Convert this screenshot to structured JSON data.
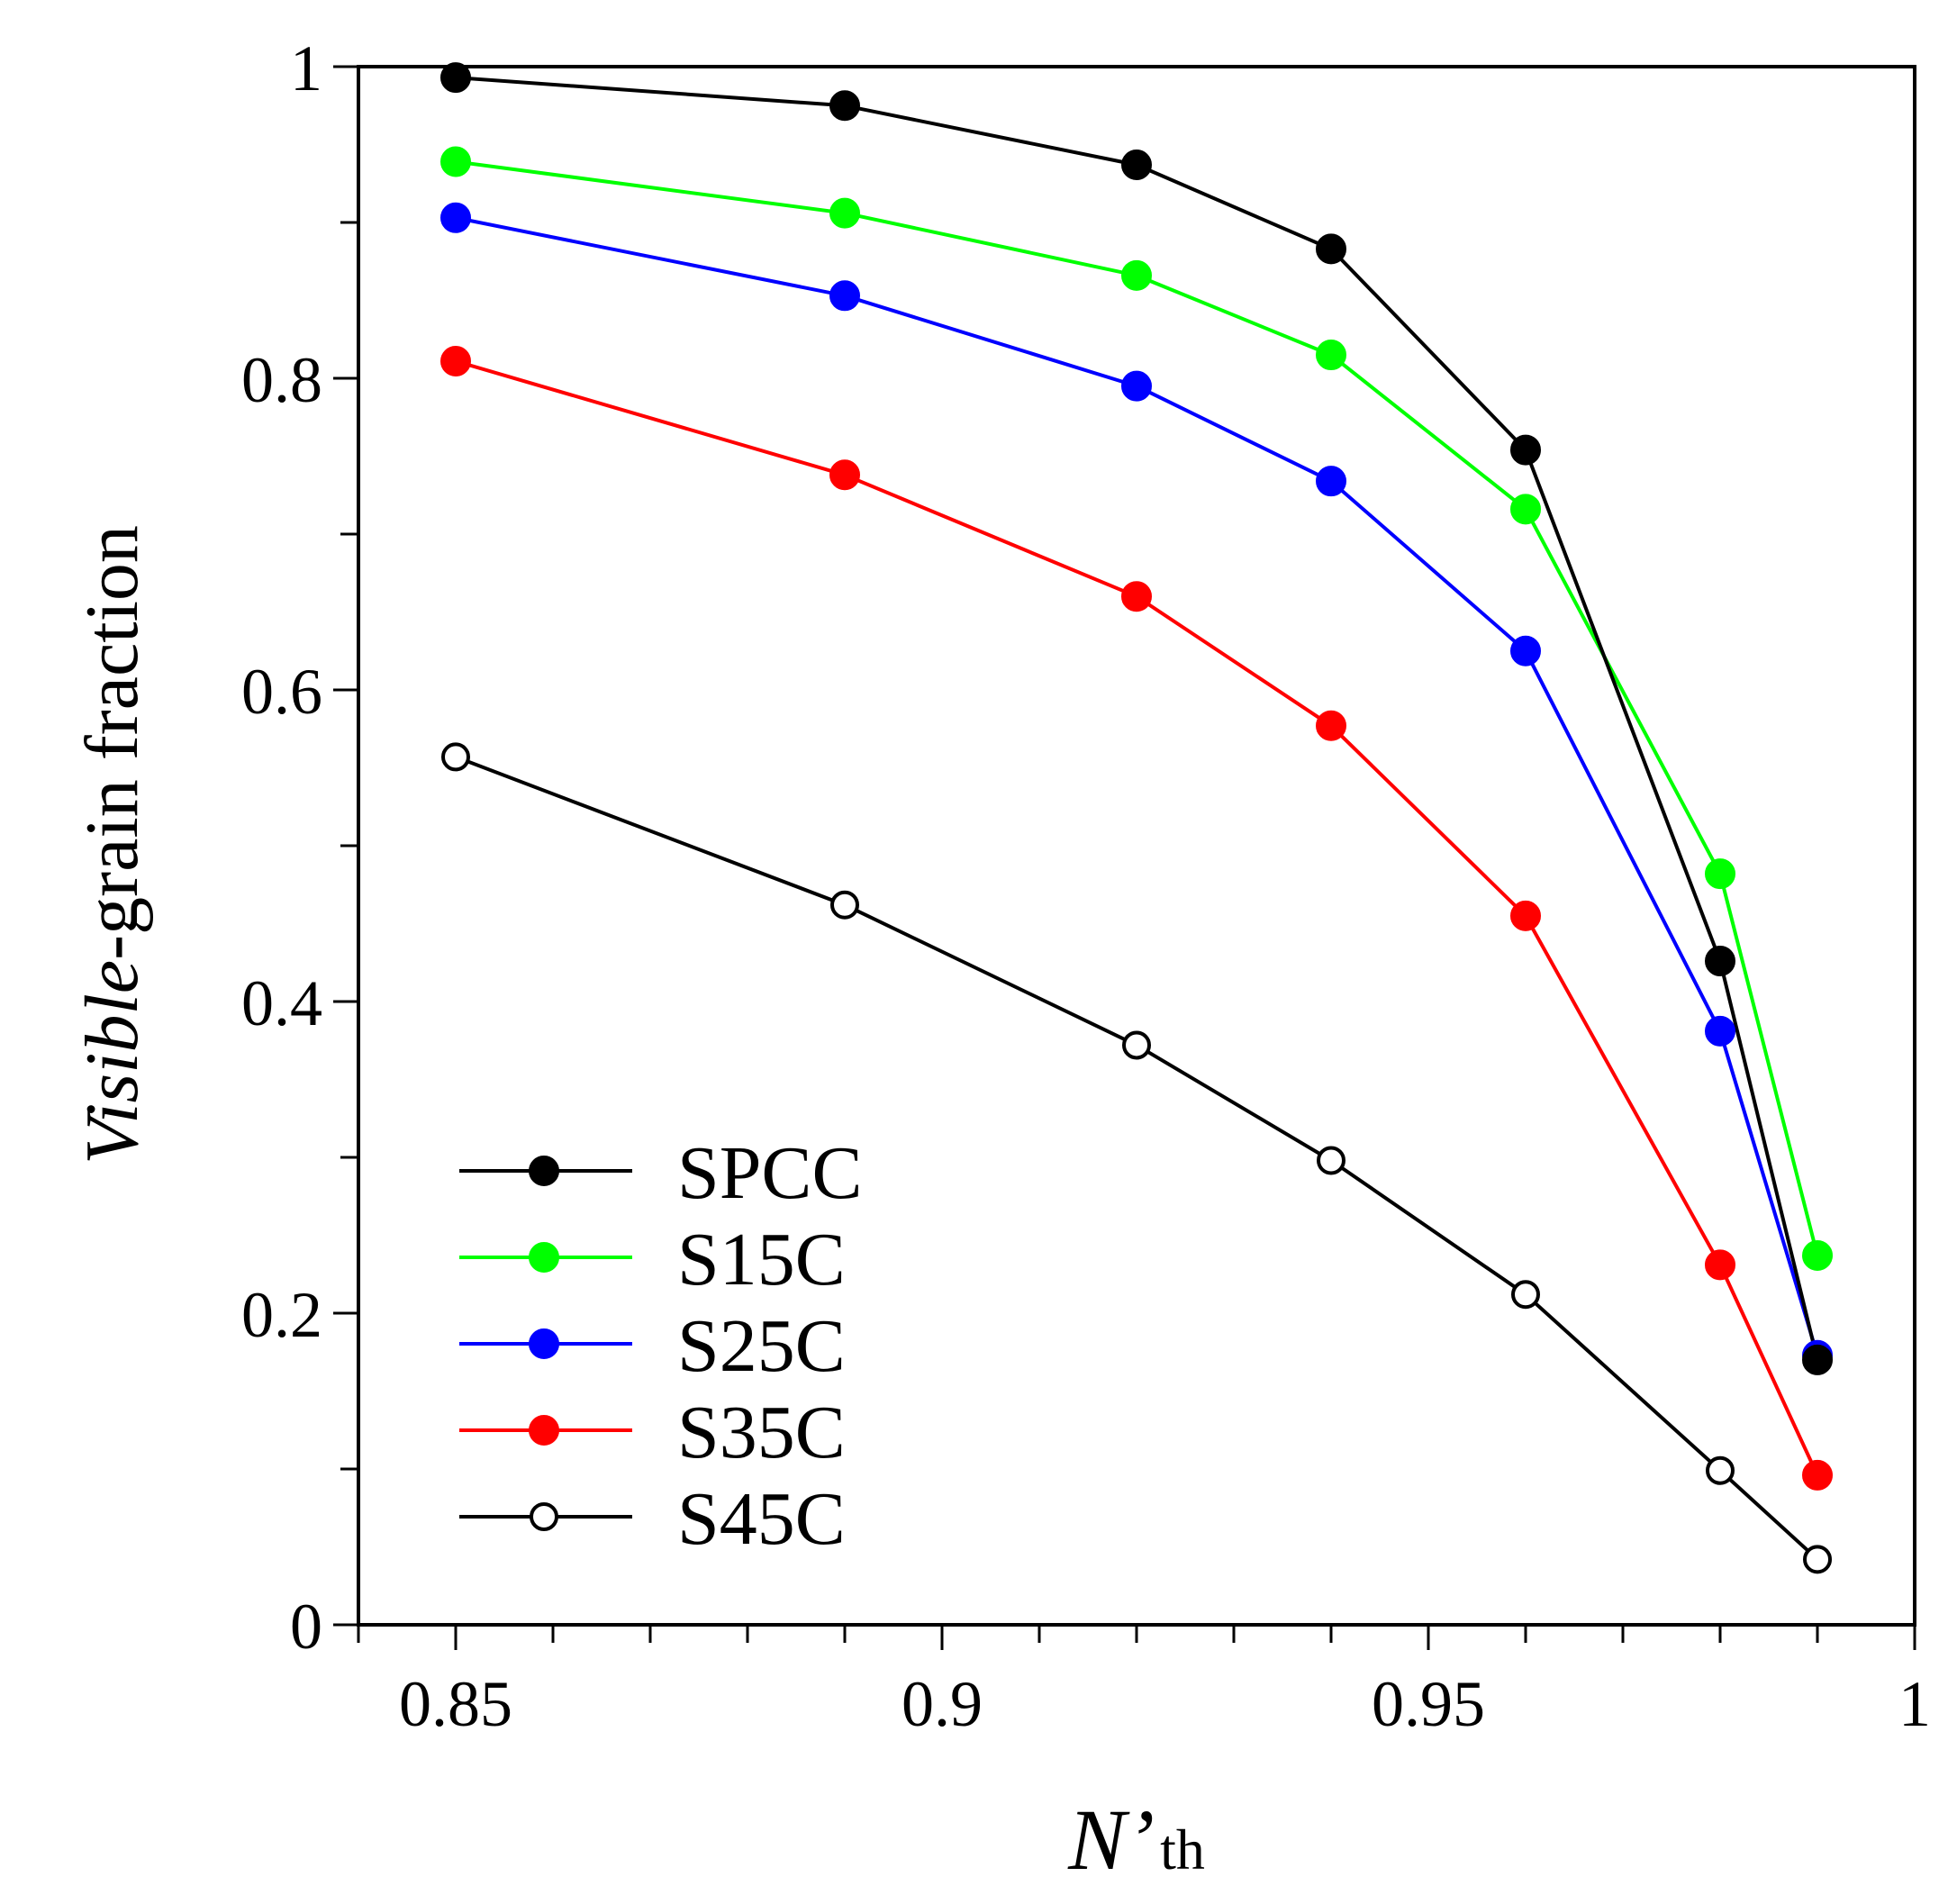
{
  "chart_data": {
    "type": "line",
    "title": "",
    "xlabel": {
      "main": "N’",
      "sub": "th"
    },
    "ylabel": {
      "italic": "Visible",
      "rest": "-grain fraction"
    },
    "xlim": [
      0.84,
      1.0
    ],
    "ylim": [
      0,
      1.0
    ],
    "x_ticks": [
      0.85,
      0.9,
      0.95,
      1.0
    ],
    "x_tick_labels": [
      "0.85",
      "0.9",
      "0.95",
      "1"
    ],
    "x_minor_step": 0.01,
    "y_ticks": [
      0,
      0.2,
      0.4,
      0.6,
      0.8,
      1.0
    ],
    "y_tick_labels": [
      "0",
      "0.2",
      "0.4",
      "0.6",
      "0.8",
      "1"
    ],
    "y_minor_step": 0.1,
    "grid": false,
    "legend_position": "bottom-left",
    "x": [
      0.85,
      0.89,
      0.92,
      0.94,
      0.96,
      0.98,
      0.99
    ],
    "series": [
      {
        "name": "SPCC",
        "color": "#000000",
        "filled": true,
        "values": [
          0.993,
          0.975,
          0.937,
          0.883,
          0.754,
          0.426,
          0.17
        ]
      },
      {
        "name": "S15C",
        "color": "#00ff00",
        "filled": true,
        "values": [
          0.939,
          0.906,
          0.866,
          0.815,
          0.716,
          0.482,
          0.237
        ]
      },
      {
        "name": "S25C",
        "color": "#0000ff",
        "filled": true,
        "values": [
          0.903,
          0.853,
          0.795,
          0.734,
          0.625,
          0.381,
          0.173
        ]
      },
      {
        "name": "S35C",
        "color": "#ff0000",
        "filled": true,
        "values": [
          0.811,
          0.738,
          0.66,
          0.577,
          0.455,
          0.231,
          0.096
        ]
      },
      {
        "name": "S45C",
        "color": "#000000",
        "filled": false,
        "values": [
          0.557,
          0.462,
          0.372,
          0.298,
          0.212,
          0.099,
          0.042
        ]
      }
    ]
  }
}
